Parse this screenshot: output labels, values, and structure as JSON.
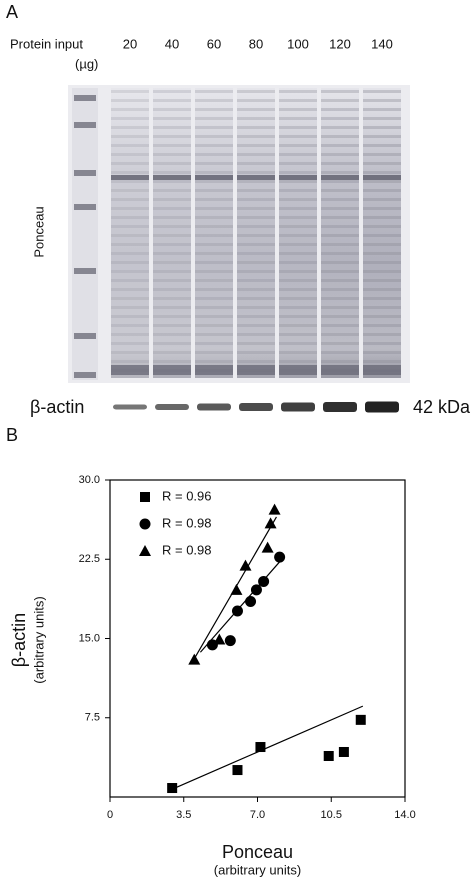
{
  "panel_a": {
    "label": "A",
    "protein_input_label": "Protein input",
    "unit": "(µg)",
    "lanes": [
      "20",
      "40",
      "60",
      "80",
      "100",
      "120",
      "140"
    ],
    "ponceau_label": "Ponceau",
    "actin_label": "β-actin",
    "kda_label": "42 kDa"
  },
  "chart_data": {
    "type": "scatter",
    "panel_label": "B",
    "x_label": "Ponceau",
    "x_label_units": "(arbitrary units)",
    "y_label": "β-actin",
    "y_label_units": "(arbitrary units)",
    "xlim": [
      0,
      14
    ],
    "ylim": [
      0,
      30
    ],
    "xticks": [
      0,
      3.5,
      {
        "value": 7,
        "label": "7.0"
      },
      10.5,
      {
        "value": 14,
        "label": "14.0"
      }
    ],
    "yticks": [
      7.5,
      {
        "value": 15,
        "label": "15.0"
      },
      22.5,
      {
        "value": 30,
        "label": "30.0"
      }
    ],
    "series": [
      {
        "name": "R = 0.96",
        "marker": "square",
        "color": "#000000",
        "x": [
          2.95,
          6.05,
          7.14,
          10.38,
          11.1,
          11.9
        ],
        "values": [
          0.85,
          2.55,
          4.73,
          3.88,
          4.26,
          7.3
        ],
        "fit_x": [
          2.86,
          12.0
        ],
        "fit_y": [
          0.66,
          8.6
        ]
      },
      {
        "name": "R = 0.98",
        "marker": "circle",
        "color": "#000000",
        "x": [
          4.86,
          5.71,
          6.05,
          6.67,
          6.95,
          7.29,
          8.05
        ],
        "values": [
          14.4,
          14.8,
          17.6,
          18.5,
          19.6,
          20.4,
          22.7
        ],
        "fit_x": [
          4.29,
          8.29
        ],
        "fit_y": [
          13.7,
          22.8
        ]
      },
      {
        "name": "R = 0.98",
        "marker": "triangle",
        "color": "#000000",
        "x": [
          4.0,
          5.19,
          6.0,
          6.43,
          7.48,
          7.62,
          7.81
        ],
        "values": [
          13.0,
          14.9,
          19.6,
          21.9,
          23.6,
          25.9,
          27.2
        ],
        "fit_x": [
          3.86,
          7.9
        ],
        "fit_y": [
          12.6,
          26.5
        ]
      }
    ]
  }
}
